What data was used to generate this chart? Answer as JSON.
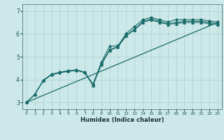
{
  "xlabel": "Humidex (Indice chaleur)",
  "bg_color": "#cce8e8",
  "grid_color": "#add0d0",
  "line_color": "#1a6b6b",
  "xlim": [
    -0.5,
    23.5
  ],
  "ylim": [
    2.7,
    7.3
  ],
  "xticks": [
    0,
    1,
    2,
    3,
    4,
    5,
    6,
    7,
    8,
    9,
    10,
    11,
    12,
    13,
    14,
    15,
    16,
    17,
    18,
    19,
    20,
    21,
    22,
    23
  ],
  "yticks": [
    3,
    4,
    5,
    6,
    7
  ],
  "series1_x": [
    0,
    1,
    2,
    3,
    4,
    5,
    6,
    7,
    8,
    9,
    10,
    11,
    12,
    13,
    14,
    15,
    16,
    17,
    18,
    19,
    20,
    21,
    22,
    23
  ],
  "series1_y": [
    3.0,
    3.35,
    3.95,
    4.2,
    4.3,
    4.35,
    4.4,
    4.3,
    3.75,
    4.7,
    5.3,
    5.45,
    5.95,
    6.2,
    6.55,
    6.65,
    6.55,
    6.45,
    6.5,
    6.55,
    6.55,
    6.55,
    6.5,
    6.45
  ],
  "series2_x": [
    0,
    1,
    2,
    3,
    4,
    5,
    6,
    7,
    8,
    9,
    10,
    11,
    12,
    13,
    14,
    15,
    16,
    17,
    18,
    19,
    20,
    21,
    22,
    23
  ],
  "series2_y": [
    3.0,
    3.35,
    3.95,
    4.22,
    4.32,
    4.38,
    4.42,
    4.32,
    3.8,
    4.75,
    5.45,
    5.48,
    6.02,
    6.32,
    6.62,
    6.72,
    6.62,
    6.52,
    6.62,
    6.62,
    6.62,
    6.62,
    6.57,
    6.52
  ],
  "series3_x": [
    0,
    1,
    2,
    3,
    4,
    5,
    6,
    7,
    8,
    9,
    10,
    11,
    12,
    13,
    14,
    15,
    16,
    17,
    18,
    19,
    20,
    21,
    22,
    23
  ],
  "series3_y": [
    3.0,
    3.35,
    3.97,
    4.22,
    4.32,
    4.38,
    4.42,
    4.32,
    3.75,
    4.65,
    5.28,
    5.42,
    5.92,
    6.18,
    6.5,
    6.62,
    6.5,
    6.42,
    6.45,
    6.5,
    6.5,
    6.5,
    6.45,
    6.4
  ],
  "series4_x": [
    0,
    23
  ],
  "series4_y": [
    3.0,
    6.5
  ]
}
